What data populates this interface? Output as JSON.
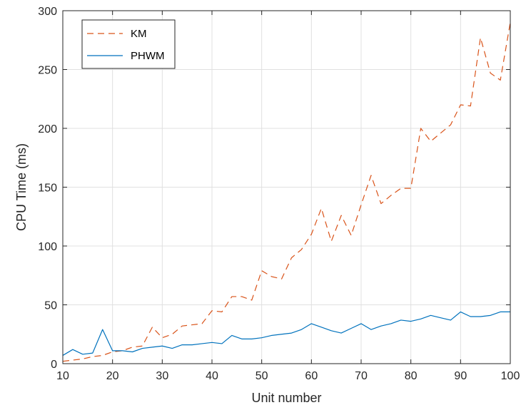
{
  "chart_data": {
    "type": "line",
    "xlabel": "Unit number",
    "ylabel": "CPU Time (ms)",
    "xlim": [
      10,
      100
    ],
    "ylim": [
      0,
      300
    ],
    "xticks": [
      10,
      20,
      30,
      40,
      50,
      60,
      70,
      80,
      90,
      100
    ],
    "yticks": [
      0,
      50,
      100,
      150,
      200,
      250,
      300
    ],
    "grid": true,
    "legend_position": "top-left",
    "x": [
      10,
      12,
      14,
      16,
      18,
      20,
      22,
      24,
      26,
      28,
      30,
      32,
      34,
      36,
      38,
      40,
      42,
      44,
      46,
      48,
      50,
      52,
      54,
      56,
      58,
      60,
      62,
      64,
      66,
      68,
      70,
      72,
      74,
      76,
      78,
      80,
      82,
      84,
      86,
      88,
      90,
      92,
      94,
      96,
      98,
      100
    ],
    "series": [
      {
        "name": "KM",
        "color": "#D95319",
        "style": "dashed",
        "values": [
          2,
          3,
          4,
          6,
          7,
          10,
          11,
          14,
          15,
          31,
          22,
          25,
          32,
          33,
          34,
          45,
          44,
          57,
          57,
          54,
          79,
          74,
          72,
          90,
          97,
          110,
          132,
          104,
          126,
          109,
          135,
          160,
          136,
          143,
          149,
          149,
          200,
          189,
          196,
          203,
          220,
          219,
          277,
          247,
          241,
          290
        ]
      },
      {
        "name": "PHWM",
        "color": "#0072BD",
        "style": "solid",
        "values": [
          7,
          12,
          8,
          9,
          29,
          11,
          11,
          10,
          13,
          14,
          15,
          13,
          16,
          16,
          17,
          18,
          17,
          24,
          21,
          21,
          22,
          24,
          25,
          26,
          29,
          34,
          31,
          28,
          26,
          30,
          34,
          29,
          32,
          34,
          37,
          36,
          38,
          41,
          39,
          37,
          44,
          40,
          40,
          41,
          44,
          44
        ]
      }
    ]
  }
}
